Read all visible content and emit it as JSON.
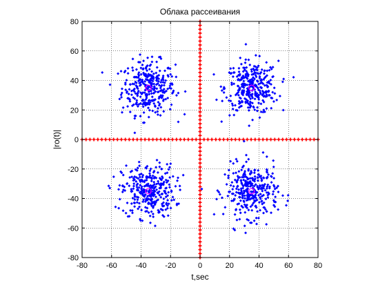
{
  "chart_data": {
    "type": "scatter",
    "title": "Облака рассеивания",
    "xlabel": "t,sec",
    "ylabel": "|ro(t)|",
    "xlim": [
      -80,
      80
    ],
    "ylim": [
      -80,
      80
    ],
    "xticks": [
      -80,
      -60,
      -40,
      -20,
      0,
      20,
      40,
      60,
      80
    ],
    "yticks": [
      -80,
      -60,
      -40,
      -20,
      0,
      20,
      40,
      60,
      80
    ],
    "grid": true,
    "grid_style": "dotted",
    "colors": {
      "points": "#0000ff",
      "axes_markers": "#ff0000",
      "centers": "#ff00ff"
    },
    "clusters": [
      {
        "center": [
          -35,
          35
        ],
        "spread": 9,
        "count": 330
      },
      {
        "center": [
          35,
          35
        ],
        "spread": 9,
        "count": 330
      },
      {
        "center": [
          -35,
          -35
        ],
        "spread": 9,
        "count": 330
      },
      {
        "center": [
          35,
          -35
        ],
        "spread": 9,
        "count": 330
      }
    ],
    "axis_marker_lines": [
      {
        "orientation": "horizontal",
        "value": 0
      },
      {
        "orientation": "vertical",
        "value": 0
      }
    ],
    "center_markers": [
      [
        -35,
        35
      ],
      [
        35,
        35
      ],
      [
        -35,
        -35
      ],
      [
        35,
        -35
      ]
    ]
  }
}
